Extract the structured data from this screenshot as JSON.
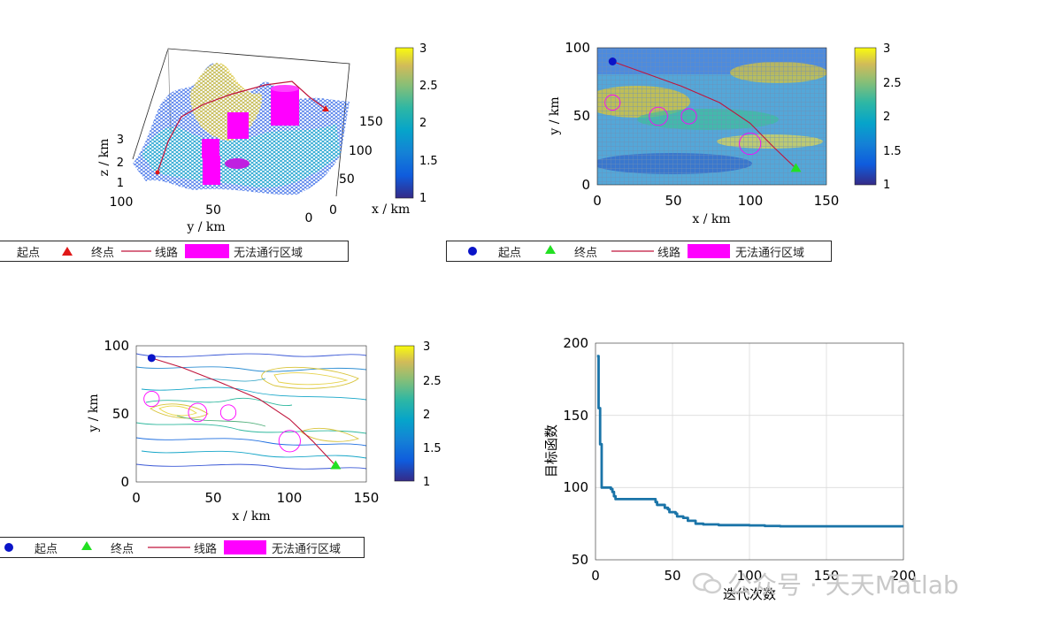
{
  "colorbar": {
    "ticks": [
      "3",
      "2.5",
      "2",
      "1.5",
      "1"
    ],
    "ticks_2": [
      "3",
      "2.5",
      "2",
      "1.5",
      "1"
    ],
    "ticks_3": [
      "3",
      "2.5",
      "2",
      "1.5",
      "1"
    ]
  },
  "legend": {
    "start": "起点",
    "end": "终点",
    "route": "线路",
    "blocked": "无法通行区域"
  },
  "colors": {
    "route": "#c0143c",
    "blocked": "#ff00ff",
    "start_blue": "#0a14c8",
    "end_green": "#22e022",
    "end_red": "#e01818",
    "curve": "#1a74a8"
  },
  "watermark": "公众号 · 天天Matlab",
  "chart_data": [
    {
      "type": "surface3d",
      "title": "",
      "xlabel": "x / km",
      "ylabel": "y / km",
      "zlabel": "z / km",
      "x_ticks": [
        "0",
        "50",
        "100",
        "150"
      ],
      "y_ticks": [
        "100",
        "50",
        "0"
      ],
      "z_ticks": [
        "3",
        "2",
        "1"
      ],
      "colorbar_range": [
        1,
        3
      ],
      "start": [
        10,
        90
      ],
      "end": [
        130,
        10
      ]
    },
    {
      "type": "mesh_topview",
      "title": "",
      "xlabel": "x / km",
      "ylabel": "y / km",
      "x_ticks": [
        "0",
        "50",
        "100",
        "150"
      ],
      "y_ticks": [
        "100",
        "50",
        "0"
      ],
      "xlim": [
        0,
        150
      ],
      "ylim": [
        0,
        100
      ],
      "colorbar_range": [
        1,
        3
      ],
      "start": [
        10,
        90
      ],
      "end": [
        130,
        12
      ],
      "obstacles": [
        {
          "x": 10,
          "y": 60,
          "r": 5
        },
        {
          "x": 40,
          "y": 50,
          "r": 6
        },
        {
          "x": 60,
          "y": 50,
          "r": 5
        },
        {
          "x": 100,
          "y": 30,
          "r": 7
        }
      ],
      "route": [
        [
          10,
          90
        ],
        [
          30,
          82
        ],
        [
          55,
          72
        ],
        [
          80,
          60
        ],
        [
          100,
          45
        ],
        [
          115,
          28
        ],
        [
          130,
          12
        ]
      ]
    },
    {
      "type": "contour",
      "title": "",
      "xlabel": "x / km",
      "ylabel": "y / km",
      "x_ticks": [
        "0",
        "50",
        "100",
        "150"
      ],
      "y_ticks": [
        "100",
        "50",
        "0"
      ],
      "xlim": [
        0,
        150
      ],
      "ylim": [
        0,
        100
      ],
      "colorbar_range": [
        1,
        3
      ],
      "start": [
        10,
        91
      ],
      "end": [
        130,
        12
      ],
      "obstacles": [
        {
          "x": 10,
          "y": 61,
          "r": 5
        },
        {
          "x": 40,
          "y": 51,
          "r": 6
        },
        {
          "x": 60,
          "y": 51,
          "r": 5
        },
        {
          "x": 100,
          "y": 30,
          "r": 7
        }
      ],
      "route": [
        [
          10,
          91
        ],
        [
          30,
          84
        ],
        [
          55,
          73
        ],
        [
          80,
          61
        ],
        [
          100,
          46
        ],
        [
          115,
          30
        ],
        [
          130,
          12
        ]
      ]
    },
    {
      "type": "line",
      "title": "",
      "xlabel": "迭代次数",
      "ylabel": "目标函数",
      "x_ticks": [
        "0",
        "50",
        "100",
        "150",
        "200"
      ],
      "y_ticks": [
        "200",
        "150",
        "100",
        "50"
      ],
      "xlim": [
        0,
        200
      ],
      "ylim": [
        50,
        200
      ],
      "grid": true,
      "x": [
        1,
        2,
        3,
        4,
        5,
        8,
        10,
        11,
        12,
        13,
        20,
        30,
        38,
        39,
        40,
        44,
        45,
        47,
        48,
        50,
        52,
        53,
        55,
        57,
        60,
        65,
        70,
        75,
        80,
        90,
        100,
        110,
        120,
        150,
        200
      ],
      "y": [
        191,
        155,
        130,
        100,
        100,
        100,
        99,
        97,
        94,
        92,
        92,
        92,
        92,
        90,
        88,
        88,
        86,
        85,
        83,
        83,
        82,
        80,
        80,
        79,
        77,
        75,
        74.5,
        74.5,
        74,
        74,
        73.8,
        73.4,
        73.2,
        73.2,
        73.2
      ]
    }
  ]
}
